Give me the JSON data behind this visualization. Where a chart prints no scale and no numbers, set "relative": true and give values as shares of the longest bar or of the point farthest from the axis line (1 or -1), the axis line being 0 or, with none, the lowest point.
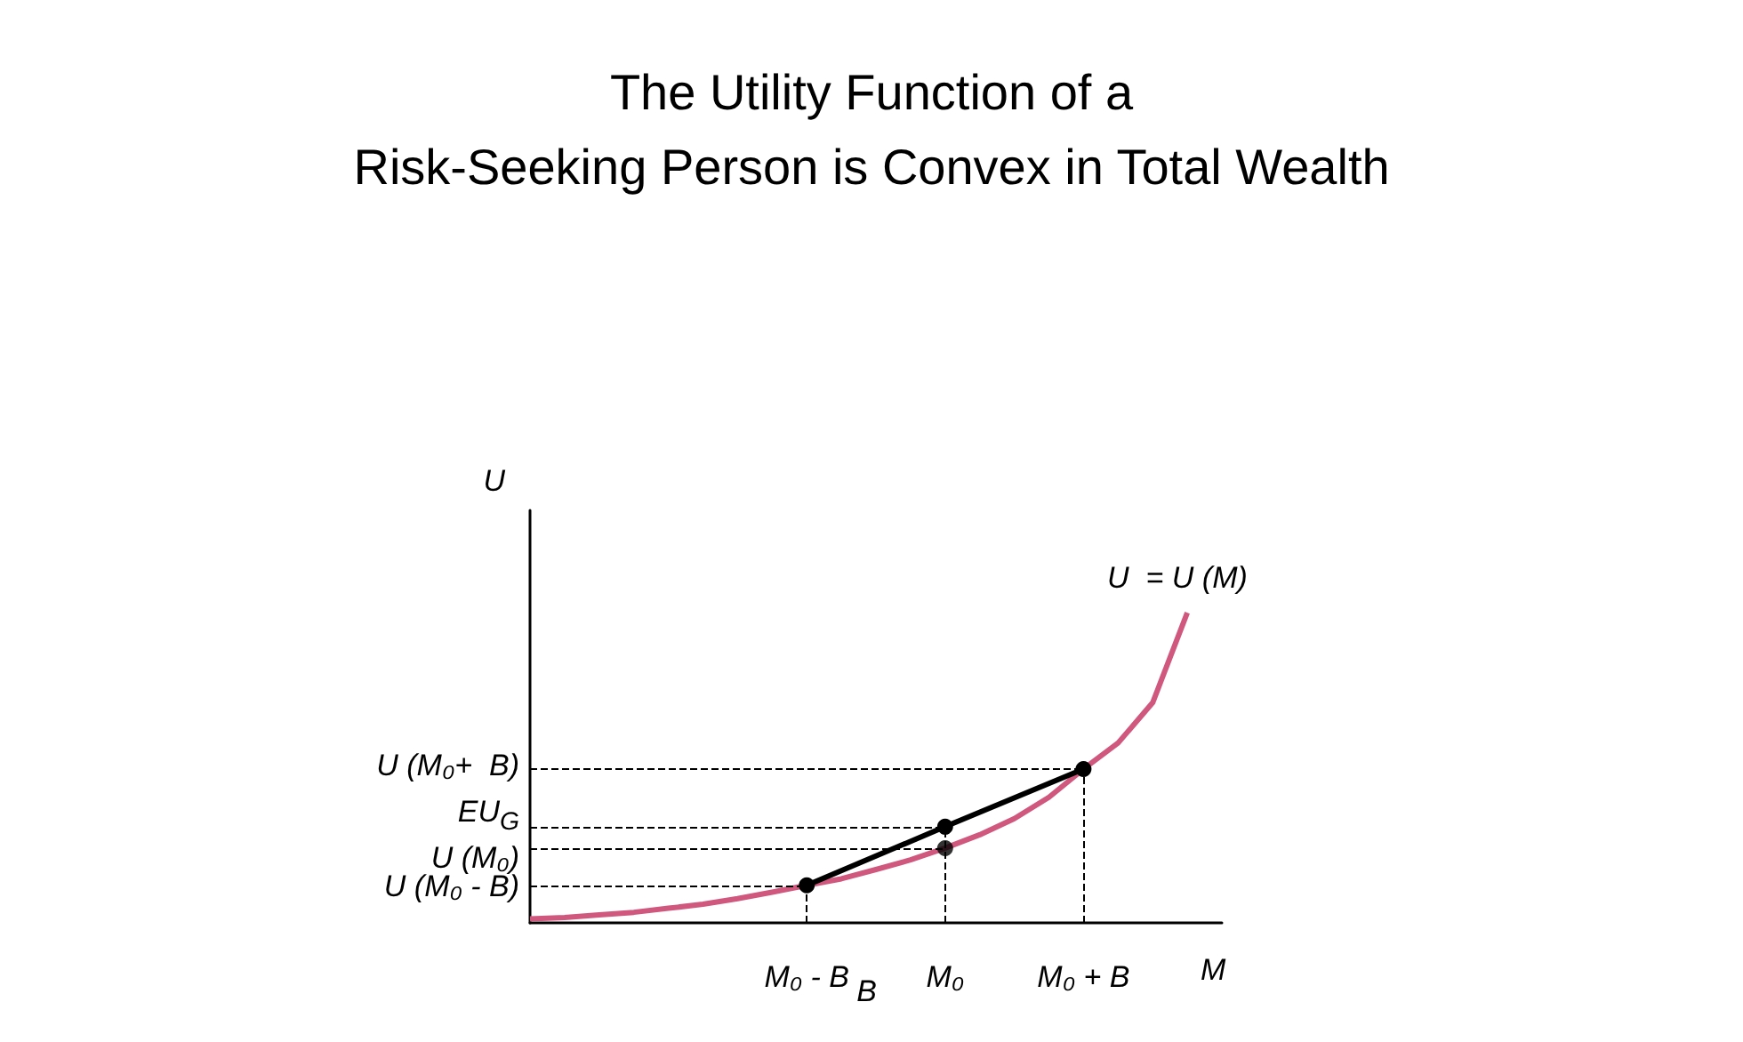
{
  "chart_data": {
    "type": "line",
    "title": "The Utility Function of a\nRisk-Seeking Person is Convex in Total Wealth",
    "xlabel": "M",
    "ylabel": "U",
    "relative": true,
    "grid": false,
    "categories": [
      null,
      null,
      null,
      null,
      null,
      null,
      null,
      null,
      "M₀ - B",
      null,
      null,
      null,
      "M₀",
      null,
      null,
      null,
      "M₀ + B",
      null,
      null,
      null,
      null
    ],
    "series": [
      {
        "color": "#d0587e",
        "marker": "none",
        "values": [
          0.013,
          0.017,
          0.026,
          0.034,
          0.047,
          0.06,
          0.078,
          0.099,
          0.121,
          0.142,
          0.172,
          0.203,
          0.241,
          0.284,
          0.336,
          0.405,
          0.496,
          0.58,
          0.71,
          1,
          null
        ]
      },
      {
        "color": "#000000",
        "marker": "circle",
        "values": [
          null,
          null,
          null,
          null,
          null,
          null,
          null,
          null,
          0.121,
          null,
          null,
          null,
          0.31,
          null,
          null,
          null,
          0.496,
          null,
          null,
          null,
          null
        ]
      },
      {
        "type": "scatter",
        "color": "#000000",
        "marker": "circle",
        "values": [
          null,
          null,
          null,
          null,
          null,
          null,
          null,
          null,
          null,
          null,
          null,
          null,
          0.241,
          null,
          null,
          null,
          null,
          null,
          null,
          null,
          null
        ]
      }
    ],
    "ref_lines": [
      {
        "axis": "y",
        "value": 0.496,
        "label": "U (M₀+  B)",
        "line_style": "dashed"
      },
      {
        "axis": "y",
        "value": 0.31,
        "label": "EU$_{G}$",
        "line_style": "dashed"
      },
      {
        "axis": "y",
        "value": 0.241,
        "label": "U (M₀)",
        "line_style": "dashed"
      },
      {
        "axis": "y",
        "value": 0.121,
        "label": "U (M₀ - B)",
        "line_style": "dashed"
      },
      {
        "axis": "x",
        "value": "M₀ - B",
        "label": null,
        "line_style": "dashed"
      },
      {
        "axis": "x",
        "value": "M₀",
        "label": null,
        "line_style": "dashed"
      },
      {
        "axis": "x",
        "value": "M₀ + B",
        "label": null,
        "line_style": "dashed"
      }
    ],
    "annotations": [
      "U  = U (M)",
      "B"
    ]
  }
}
